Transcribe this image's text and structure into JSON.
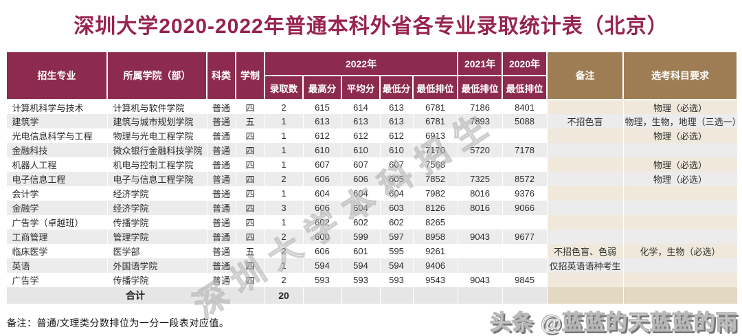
{
  "title": "深圳大学2020-2022年普通本科外省各专业录取统计表（北京）",
  "table": {
    "header": {
      "col_major": "招生专业",
      "col_college": "所属学院（部）",
      "col_category": "科类",
      "col_duration": "学制",
      "group_2022": "2022年",
      "group_2021": "2021年",
      "group_2020": "2020年",
      "sub_admitted": "录取数",
      "sub_max": "最高分",
      "sub_avg": "平均分",
      "sub_min": "最低分",
      "sub_rank_2022": "最低排位",
      "sub_rank_2021": "最低排位",
      "sub_rank_2020": "最低排位",
      "col_remark": "备注",
      "col_subjects": "选考科目要求"
    },
    "rows": [
      {
        "major": "计算机科学与技术",
        "college": "计算机与软件学院",
        "category": "普通",
        "duration": "四",
        "admitted": "2",
        "max": "615",
        "avg": "614",
        "min": "613",
        "rank2022": "6781",
        "rank2021": "7186",
        "rank2020": "8401",
        "remark": "",
        "subjects": "物理（必选）"
      },
      {
        "major": "建筑学",
        "college": "建筑与城市规划学院",
        "category": "普通",
        "duration": "五",
        "admitted": "1",
        "max": "613",
        "avg": "613",
        "min": "613",
        "rank2022": "6781",
        "rank2021": "7893",
        "rank2020": "5088",
        "remark": "不招色盲",
        "subjects": "物理，生物，地理（三选一）"
      },
      {
        "major": "光电信息科学与工程",
        "college": "物理与光电工程学院",
        "category": "普通",
        "duration": "四",
        "admitted": "1",
        "max": "612",
        "avg": "612",
        "min": "612",
        "rank2022": "6913",
        "rank2021": "",
        "rank2020": "",
        "remark": "",
        "subjects": "物理（必选）"
      },
      {
        "major": "金融科技",
        "college": "微众银行金融科技学院",
        "category": "普通",
        "duration": "四",
        "admitted": "1",
        "max": "610",
        "avg": "610",
        "min": "610",
        "rank2022": "7170",
        "rank2021": "5720",
        "rank2020": "7178",
        "remark": "",
        "subjects": ""
      },
      {
        "major": "机器人工程",
        "college": "机电与控制工程学院",
        "category": "普通",
        "duration": "四",
        "admitted": "1",
        "max": "607",
        "avg": "607",
        "min": "607",
        "rank2022": "7568",
        "rank2021": "",
        "rank2020": "",
        "remark": "",
        "subjects": "物理（必选）"
      },
      {
        "major": "电子信息工程",
        "college": "电子与信息工程学院",
        "category": "普通",
        "duration": "四",
        "admitted": "2",
        "max": "606",
        "avg": "606",
        "min": "605",
        "rank2022": "7852",
        "rank2021": "7325",
        "rank2020": "8572",
        "remark": "",
        "subjects": "物理（必选）"
      },
      {
        "major": "会计学",
        "college": "经济学院",
        "category": "普通",
        "duration": "四",
        "admitted": "1",
        "max": "604",
        "avg": "604",
        "min": "604",
        "rank2022": "7982",
        "rank2021": "8016",
        "rank2020": "9376",
        "remark": "",
        "subjects": ""
      },
      {
        "major": "金融学",
        "college": "经济学院",
        "category": "普通",
        "duration": "四",
        "admitted": "3",
        "max": "606",
        "avg": "604",
        "min": "603",
        "rank2022": "8126",
        "rank2021": "8016",
        "rank2020": "9066",
        "remark": "",
        "subjects": ""
      },
      {
        "major": "广告学（卓越班）",
        "college": "传播学院",
        "category": "普通",
        "duration": "四",
        "admitted": "1",
        "max": "602",
        "avg": "602",
        "min": "602",
        "rank2022": "8265",
        "rank2021": "",
        "rank2020": "",
        "remark": "",
        "subjects": ""
      },
      {
        "major": "工商管理",
        "college": "管理学院",
        "category": "普通",
        "duration": "四",
        "admitted": "2",
        "max": "600",
        "avg": "599",
        "min": "597",
        "rank2022": "8958",
        "rank2021": "9043",
        "rank2020": "9677",
        "remark": "",
        "subjects": ""
      },
      {
        "major": "临床医学",
        "college": "医学部",
        "category": "普通",
        "duration": "五",
        "admitted": "2",
        "max": "606",
        "avg": "601",
        "min": "595",
        "rank2022": "9261",
        "rank2021": "",
        "rank2020": "",
        "remark": "不招色盲、色弱",
        "subjects": "化学，生物（必选）"
      },
      {
        "major": "英语",
        "college": "外国语学院",
        "category": "普通",
        "duration": "四",
        "admitted": "1",
        "max": "594",
        "avg": "594",
        "min": "594",
        "rank2022": "9406",
        "rank2021": "",
        "rank2020": "",
        "remark": "仅招英语语种考生",
        "subjects": ""
      },
      {
        "major": "广告学",
        "college": "传播学院",
        "category": "普通",
        "duration": "四",
        "admitted": "2",
        "max": "593",
        "avg": "593",
        "min": "593",
        "rank2022": "9543",
        "rank2021": "9043",
        "rank2020": "9845",
        "remark": "",
        "subjects": ""
      }
    ],
    "total_row": {
      "label": "合计",
      "admitted": "20"
    }
  },
  "footnote": "备注：普通/文理类分数排位为一分一段表对应值。",
  "watermarks": {
    "diagonal": "深圳大学本科招生",
    "corner": "头条 @蓝蓝的天蓝蓝的雨"
  },
  "colors": {
    "header_maroon": "#8C2B4E",
    "header_brown": "#9F7D54",
    "stripe_gray": "#ECECEC",
    "beige_light": "#F0E9DB",
    "beige_dark": "#E3D8C2",
    "title_color": "#97234F",
    "total_gray": "#E6E6E6"
  }
}
